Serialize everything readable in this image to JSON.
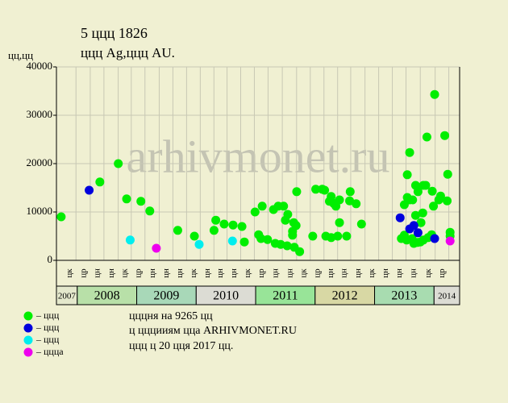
{
  "chart_data": {
    "type": "scatter",
    "title": "5 ццц 1826",
    "subtitle": "ццц Ag,ццц AU.",
    "y_label": "цц,цц",
    "watermark": "arhivmonet.ru",
    "notes": [
      "цццня на 9265 цц",
      "ц цццииям цца ARHIVMONET.RU",
      "ццц ц 20 цця 2017 цц."
    ],
    "xlim": [
      2007.65,
      2014.43
    ],
    "ylim": [
      0,
      40000
    ],
    "yticks": [
      0,
      10000,
      20000,
      30000,
      40000
    ],
    "grid": true,
    "xticks": [
      {
        "value": 2007.87,
        "label": "цк"
      },
      {
        "value": 2008.11,
        "label": "цр"
      },
      {
        "value": 2008.34,
        "label": "цн"
      },
      {
        "value": 2008.58,
        "label": "цн"
      },
      {
        "value": 2008.8,
        "label": "цк"
      },
      {
        "value": 2009.03,
        "label": "цр"
      },
      {
        "value": 2009.27,
        "label": "цн"
      },
      {
        "value": 2009.5,
        "label": "цн"
      },
      {
        "value": 2009.73,
        "label": "цн"
      },
      {
        "value": 2009.96,
        "label": "цк"
      },
      {
        "value": 2010.19,
        "label": "цн"
      },
      {
        "value": 2010.41,
        "label": "цн"
      },
      {
        "value": 2010.64,
        "label": "цн"
      },
      {
        "value": 2010.87,
        "label": "цк"
      },
      {
        "value": 2011.1,
        "label": "цр"
      },
      {
        "value": 2011.34,
        "label": "цн"
      },
      {
        "value": 2011.58,
        "label": "цн"
      },
      {
        "value": 2011.81,
        "label": "цк"
      },
      {
        "value": 2012.04,
        "label": "цр"
      },
      {
        "value": 2012.27,
        "label": "цн"
      },
      {
        "value": 2012.49,
        "label": "цн"
      },
      {
        "value": 2012.73,
        "label": "цн"
      },
      {
        "value": 2012.96,
        "label": "цк"
      },
      {
        "value": 2013.19,
        "label": "цн"
      },
      {
        "value": 2013.42,
        "label": "цн"
      },
      {
        "value": 2013.66,
        "label": "цн"
      },
      {
        "value": 2013.91,
        "label": "цк"
      },
      {
        "value": 2014.14,
        "label": "цр"
      }
    ],
    "year_bands": [
      {
        "label": "2007",
        "start": 2007.65,
        "end": 2008.0,
        "color": "#e4e8cc"
      },
      {
        "label": "2008",
        "start": 2008.0,
        "end": 2009.0,
        "color": "#b8e0a8"
      },
      {
        "label": "2009",
        "start": 2009.0,
        "end": 2010.0,
        "color": "#a8d8b8"
      },
      {
        "label": "2010",
        "start": 2010.0,
        "end": 2011.0,
        "color": "#dcdcd4"
      },
      {
        "label": "2011",
        "start": 2011.0,
        "end": 2012.0,
        "color": "#98e498"
      },
      {
        "label": "2012",
        "start": 2012.0,
        "end": 2013.0,
        "color": "#d8d8a4"
      },
      {
        "label": "2013",
        "start": 2013.0,
        "end": 2014.0,
        "color": "#a8dcb0"
      },
      {
        "label": "2014",
        "start": 2014.0,
        "end": 2014.43,
        "color": "#dcdcd4"
      }
    ],
    "series": [
      {
        "name": "– ццц",
        "color": "#00ee00",
        "x": [
          2007.73,
          2008.38,
          2008.69,
          2008.83,
          2009.07,
          2009.22,
          2009.69,
          2009.97,
          2010.33,
          2010.3,
          2010.47,
          2010.62,
          2010.77,
          2010.81,
          2010.99,
          2011.11,
          2011.05,
          2011.09,
          2011.2,
          2011.33,
          2011.42,
          2011.53,
          2011.65,
          2011.74,
          2011.3,
          2011.38,
          2011.47,
          2011.5,
          2011.54,
          2011.64,
          2011.68,
          2011.62,
          2011.62,
          2011.69,
          2011.96,
          2012.01,
          2012.12,
          2012.16,
          2012.24,
          2012.27,
          2012.31,
          2012.35,
          2012.41,
          2012.18,
          2012.27,
          2012.38,
          2012.41,
          2012.53,
          2012.59,
          2012.58,
          2012.69,
          2012.78,
          2013.5,
          2013.55,
          2013.59,
          2013.59,
          2013.55,
          2013.64,
          2013.69,
          2013.73,
          2013.82,
          2013.86,
          2013.88,
          2013.81,
          2013.78,
          2013.97,
          2014.01,
          2014.11,
          2014.08,
          2014.18,
          2014.23,
          2014.22,
          2013.99,
          2014.27,
          2014.27,
          2013.45,
          2013.5,
          2013.54,
          2013.63,
          2013.66,
          2013.72,
          2013.77,
          2013.82,
          2013.9,
          2013.96,
          2013.69
        ],
        "values": [
          9000,
          16200,
          20000,
          12700,
          12200,
          10200,
          6200,
          5000,
          8300,
          6200,
          7500,
          7300,
          7000,
          3800,
          10000,
          11200,
          5300,
          4500,
          4300,
          3500,
          3300,
          3000,
          2700,
          1800,
          10500,
          11200,
          11200,
          8300,
          9500,
          7800,
          7200,
          6000,
          5200,
          14200,
          5000,
          14700,
          14700,
          14500,
          12200,
          13200,
          11800,
          11200,
          12500,
          5000,
          4700,
          5000,
          7800,
          5000,
          14200,
          12300,
          11700,
          7500,
          11500,
          13000,
          12500,
          22300,
          17700,
          12500,
          15500,
          14200,
          15500,
          15500,
          25500,
          9800,
          7800,
          14300,
          34300,
          13300,
          12500,
          25800,
          17800,
          12300,
          11200,
          5800,
          5000,
          4500,
          5200,
          4200,
          4500,
          3500,
          3700,
          3800,
          4200,
          4700,
          5300,
          9300
        ]
      },
      {
        "name": "– ццц",
        "color": "#0000dd",
        "x": [
          2008.2,
          2013.43,
          2013.59,
          2013.66,
          2013.73,
          2014.01
        ],
        "values": [
          14500,
          8800,
          6500,
          7200,
          5700,
          4500
        ]
      },
      {
        "name": "– ццц",
        "color": "#00eeee",
        "x": [
          2008.89,
          2010.05,
          2010.61
        ],
        "values": [
          4200,
          3300,
          4000
        ]
      },
      {
        "name": "– ццца",
        "color": "#ee00ee",
        "x": [
          2009.33,
          2014.27
        ],
        "values": [
          2500,
          4000
        ]
      }
    ]
  }
}
